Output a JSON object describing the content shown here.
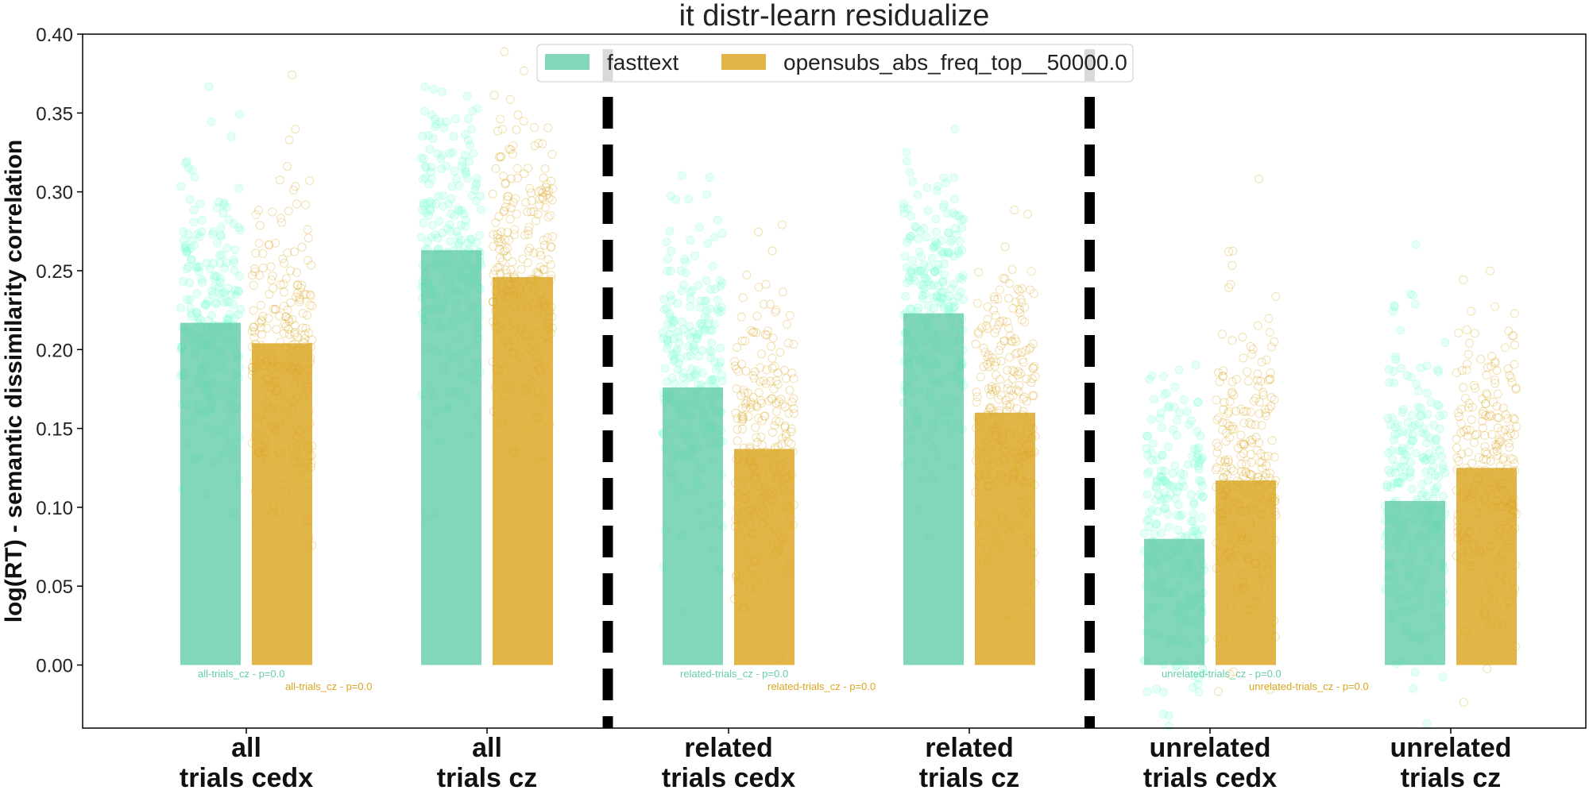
{
  "chart_data": {
    "type": "bar",
    "title": "it distr-learn residualize",
    "ylabel": "log(RT) - semantic dissimilarity correlation",
    "ylim": [
      -0.04,
      0.4
    ],
    "yticks": [
      "0.00",
      "0.05",
      "0.10",
      "0.15",
      "0.20",
      "0.25",
      "0.30",
      "0.35",
      "0.40"
    ],
    "categories": [
      [
        "all",
        "trials cedx"
      ],
      [
        "all",
        "trials cz"
      ],
      [
        "related",
        "trials cedx"
      ],
      [
        "related",
        "trials cz"
      ],
      [
        "unrelated",
        "trials cedx"
      ],
      [
        "unrelated",
        "trials cz"
      ]
    ],
    "series": [
      {
        "name": "fasttext",
        "color": "#66cdaa",
        "point_color": "#7fffd4",
        "values": [
          0.217,
          0.263,
          0.176,
          0.223,
          0.08,
          0.104
        ],
        "spread": [
          0.05,
          0.05,
          0.05,
          0.05,
          0.05,
          0.05
        ]
      },
      {
        "name": "opensubs_abs_freq_top__50000.0",
        "color": "#daa520",
        "point_color": "#daa520",
        "values": [
          0.204,
          0.246,
          0.137,
          0.16,
          0.117,
          0.125
        ],
        "spread": [
          0.05,
          0.05,
          0.05,
          0.05,
          0.05,
          0.05
        ]
      }
    ],
    "annotations": [
      {
        "text": "all-trials_cz - p=0.0",
        "series": 0,
        "group": 0
      },
      {
        "text": "all-trials_cz - p=0.0",
        "series": 1,
        "group": 0
      },
      {
        "text": "related-trials_cz - p=0.0",
        "series": 0,
        "group": 2
      },
      {
        "text": "related-trials_cz - p=0.0",
        "series": 1,
        "group": 2
      },
      {
        "text": "unrelated-trials_cz - p=0.0",
        "series": 0,
        "group": 4
      },
      {
        "text": "unrelated-trials_cz - p=0.0",
        "series": 1,
        "group": 4
      }
    ],
    "separators_after_groups": [
      1,
      3
    ],
    "legend_position": "upper center",
    "grid": false
  }
}
